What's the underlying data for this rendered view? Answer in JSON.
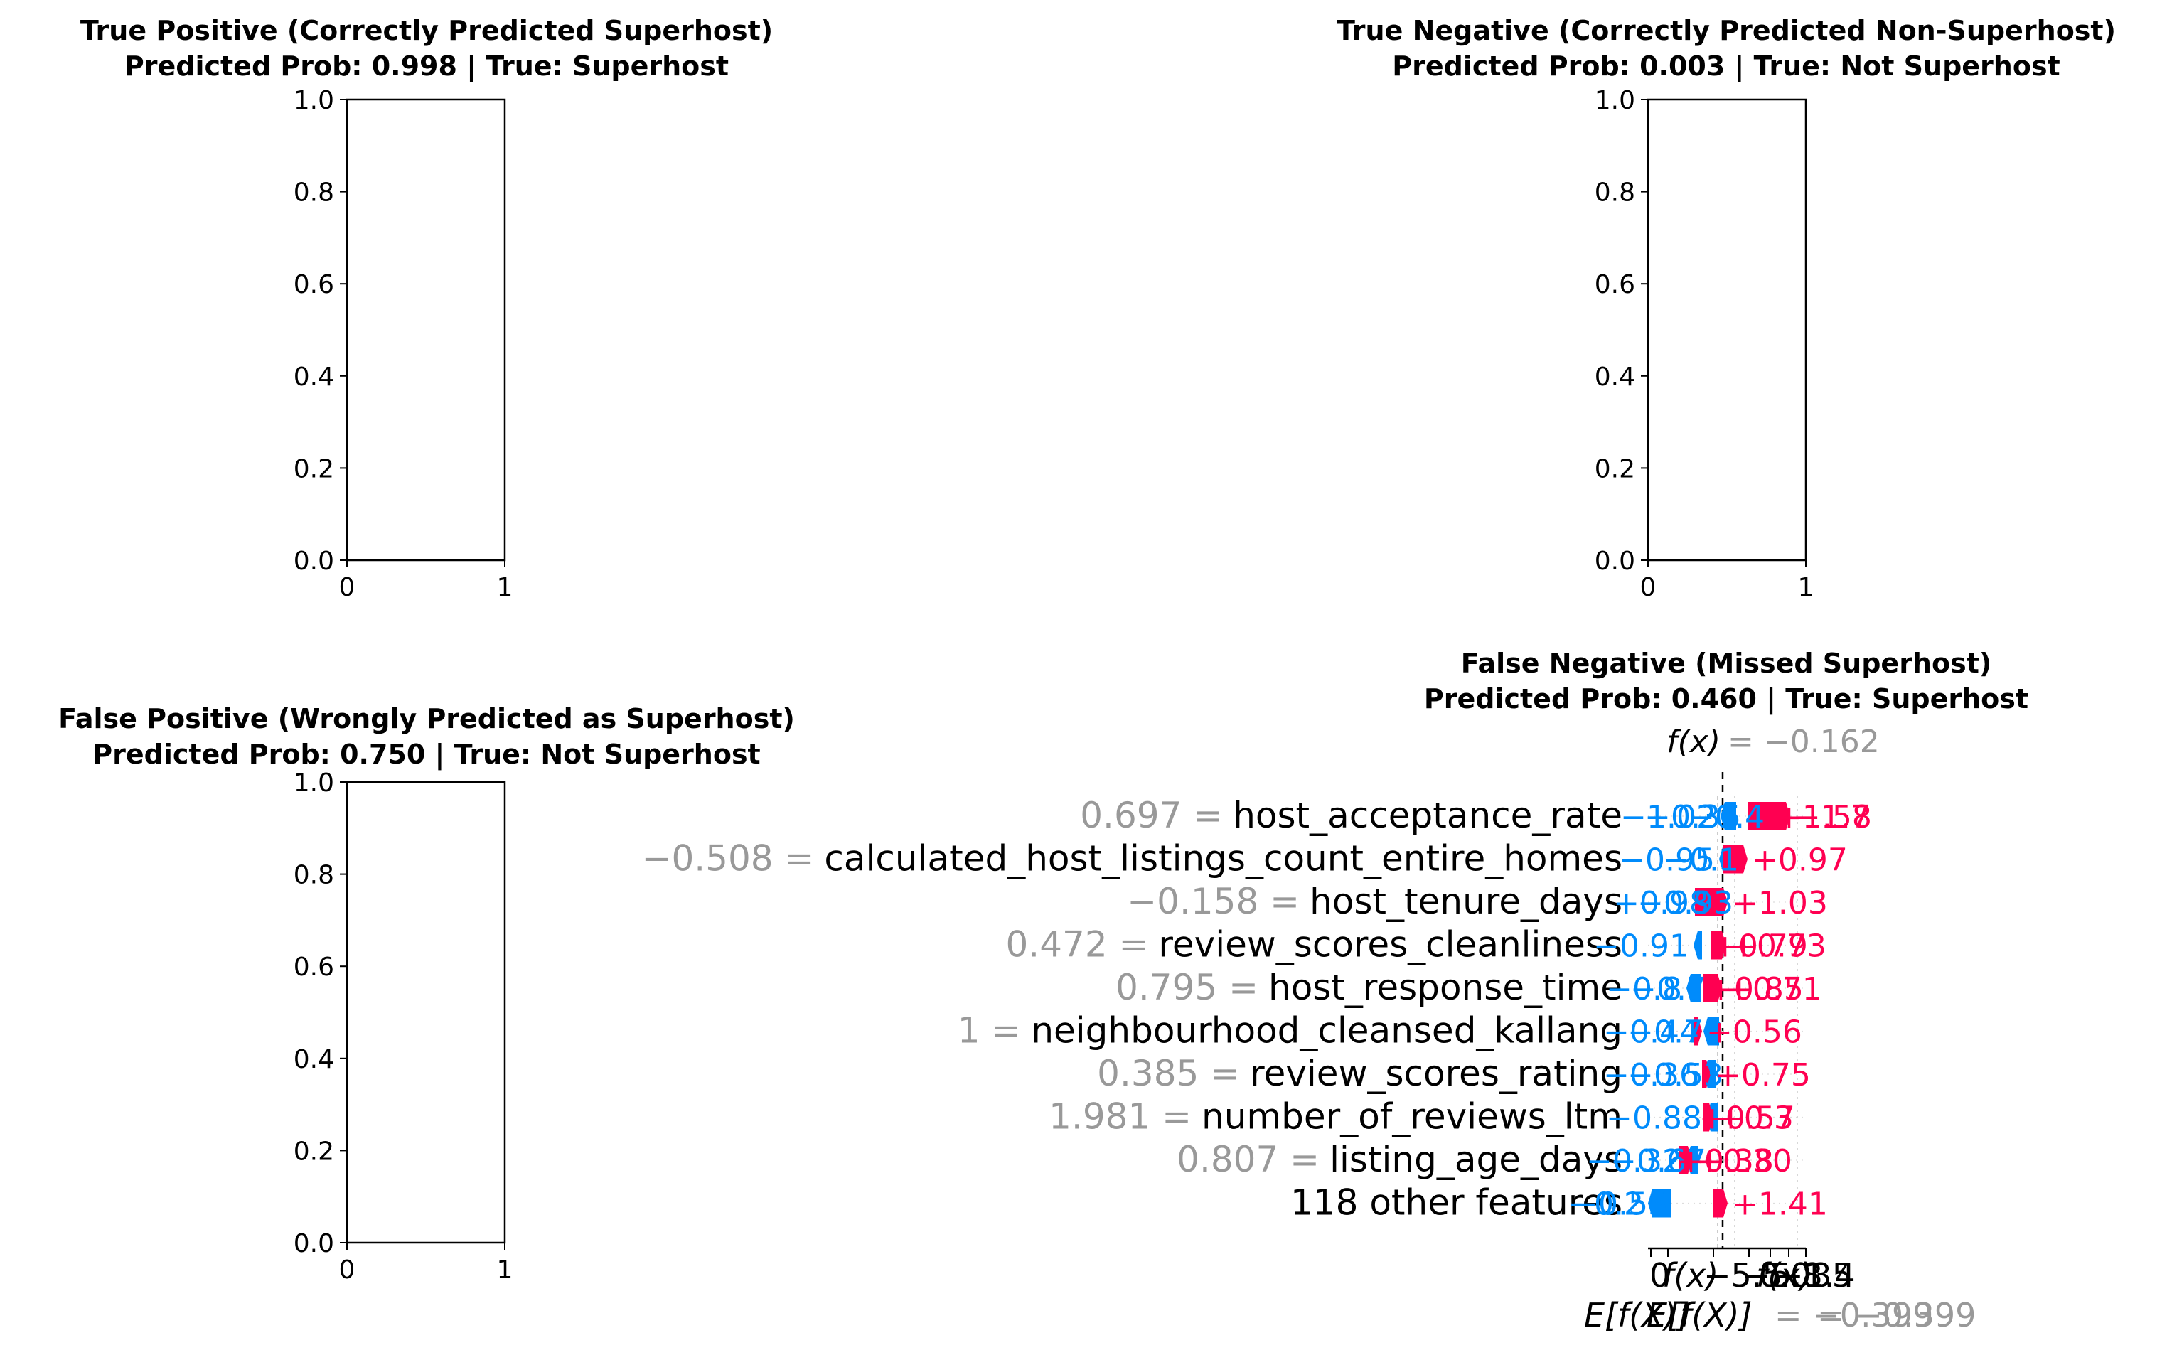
{
  "chart_data": [
    {
      "type": "empty-axes",
      "title": "True Positive (Correctly Predicted Superhost)",
      "subtitle": "Predicted Prob: 0.998 | True: Superhost",
      "xticks": [
        "0",
        "1"
      ],
      "yticks": [
        "0.0",
        "0.2",
        "0.4",
        "0.6",
        "0.8",
        "1.0"
      ],
      "xlim": [
        0,
        1
      ],
      "ylim": [
        0,
        1
      ]
    },
    {
      "type": "empty-axes",
      "title": "True Negative (Correctly Predicted Non-Superhost)",
      "subtitle": "Predicted Prob: 0.003 | True: Not Superhost",
      "xticks": [
        "0",
        "1"
      ],
      "yticks": [
        "0.0",
        "0.2",
        "0.4",
        "0.6",
        "0.8",
        "1.0"
      ],
      "xlim": [
        0,
        1
      ],
      "ylim": [
        0,
        1
      ]
    },
    {
      "type": "empty-axes",
      "title": "False Positive (Wrongly Predicted as Superhost)",
      "subtitle": "Predicted Prob: 0.750 | True: Not Superhost",
      "xticks": [
        "0",
        "1"
      ],
      "yticks": [
        "0.0",
        "0.2",
        "0.4",
        "0.6",
        "0.8",
        "1.0"
      ],
      "xlim": [
        0,
        1
      ],
      "ylim": [
        0,
        1
      ]
    },
    {
      "type": "waterfall",
      "title": "False Negative (Missed Superhost)",
      "subtitle": "Predicted Prob: 0.460 | True: Superhost",
      "fx_label": "f(x)",
      "fx_value": "= −0.162",
      "features": [
        {
          "value": "0.697 =",
          "name": "host_acceptance_rate",
          "neg_label": "−1.02",
          "pos_label": "+1.58"
        },
        {
          "value": "−0.508 =",
          "name": "calculated_host_listings_count_entire_homes",
          "neg_label": "−0.95",
          "pos_label": "+0.97"
        },
        {
          "value": "−0.158 =",
          "name": "host_tenure_days",
          "neg_label": "+0.98",
          "pos_label": "+1.03"
        },
        {
          "value": "0.472 =",
          "name": "review_scores_cleanliness",
          "neg_label": "−0.91",
          "pos_label": "+0.79"
        },
        {
          "value": "0.795 =",
          "name": "host_response_time",
          "neg_label": "−0.8",
          "pos_label": "+0.85"
        },
        {
          "value": "1 =",
          "name": "neighbourhood_cleansed_kallang",
          "neg_label": "−0.44",
          "pos_label": "+0.56"
        },
        {
          "value": "0.385 =",
          "name": "review_scores_rating",
          "neg_label": "−0.36",
          "pos_label": "+0.75"
        },
        {
          "value": "1.981 =",
          "name": "number_of_reviews_ltm",
          "neg_label": "−0.8",
          "pos_label": "+0.57"
        },
        {
          "value": "0.807 =",
          "name": "listing_age_days",
          "neg_label": "−0.32",
          "pos_label": "+0.38"
        },
        {
          "value": "",
          "name": "118 other features",
          "neg_label": "−0.25",
          "pos_label": "+1.41"
        }
      ],
      "neg_stack": [
        [
          "−1.02",
          "−0.36",
          "−0.4"
        ],
        [
          "−0.95",
          "−0.1"
        ],
        [
          "+0.98",
          "−0.93"
        ],
        [
          "−0.91"
        ],
        [
          "−0.8",
          "−0.7"
        ],
        [
          "−0.44",
          "−0.78"
        ],
        [
          "−0.36",
          "−0.53"
        ],
        [
          "−0.88"
        ],
        [
          "−0.32",
          "−0.67"
        ],
        [
          "−0.2",
          "−0.55"
        ]
      ],
      "pos_stack": [
        [
          "−1.7",
          "+1.58"
        ],
        [
          "+0.97"
        ],
        [
          "+1.03"
        ],
        [
          "+0.73",
          "+0.79"
        ],
        [
          "+0.71",
          "+0.85"
        ],
        [
          "+0.56"
        ],
        [
          "+0.75"
        ],
        [
          "+0.3",
          "+0.57"
        ],
        [
          "+0.30",
          "+0.38"
        ],
        [
          "+1.41"
        ]
      ],
      "xtick_labels": [
        "0",
        "f(x)",
        "−5.5",
        "−5.8",
        "f(x)",
        "−1.4",
        "0.035"
      ],
      "bottom_labels": [
        "E[f(X)]",
        "E[f(X)]",
        "= −0.399",
        "= −0.399"
      ],
      "colors": {
        "positive": "#ff0051",
        "negative": "#008bfb",
        "value_text": "#999999",
        "label_text": "#000000"
      }
    }
  ]
}
